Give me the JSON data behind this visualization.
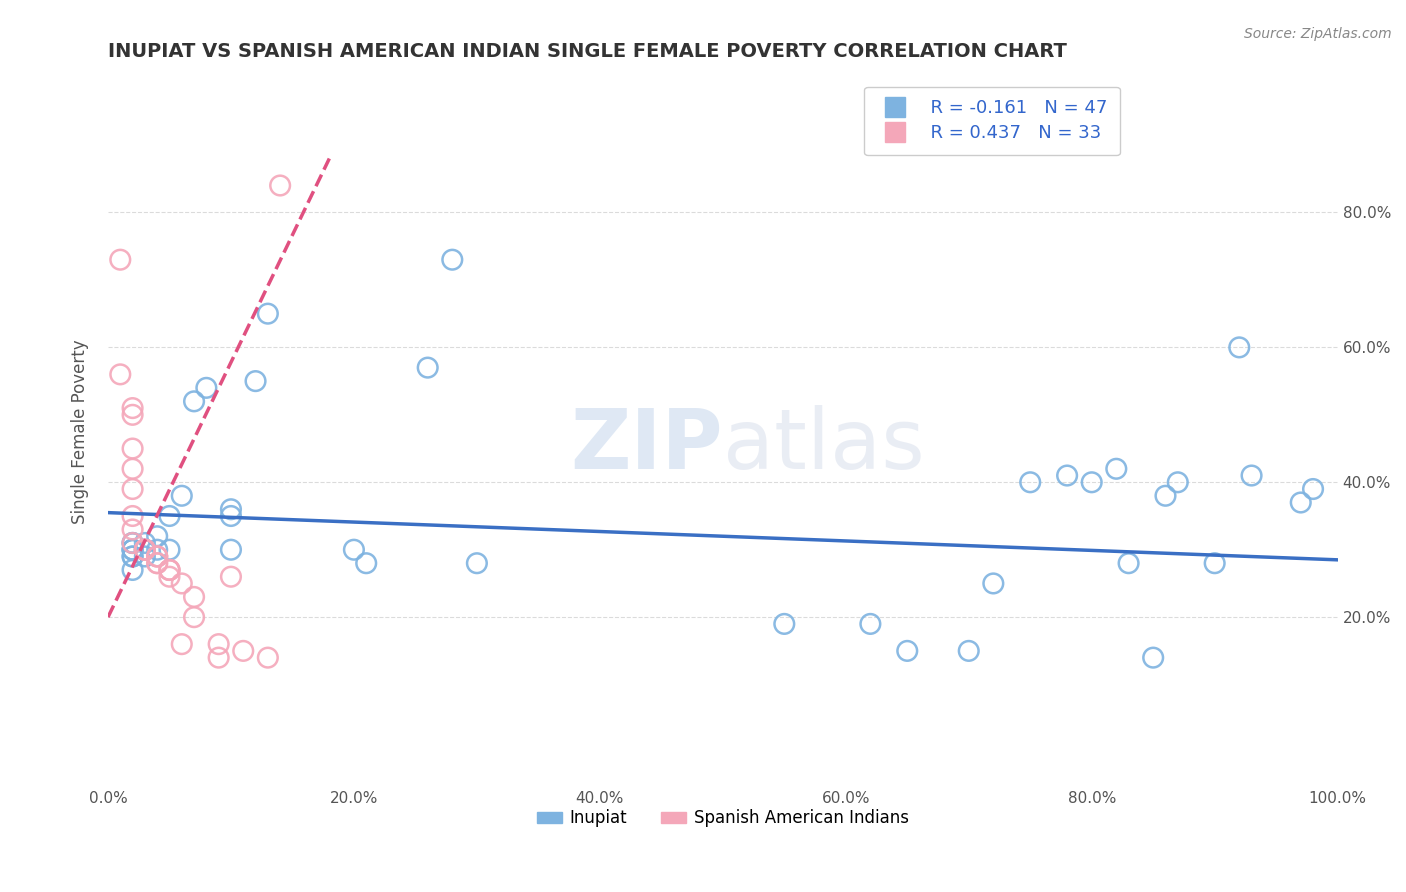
{
  "title": "INUPIAT VS SPANISH AMERICAN INDIAN SINGLE FEMALE POVERTY CORRELATION CHART",
  "source": "Source: ZipAtlas.com",
  "ylabel": "Single Female Poverty",
  "watermark_zip": "ZIP",
  "watermark_atlas": "atlas",
  "legend_inupiat_R": "R = -0.161",
  "legend_inupiat_N": "N = 47",
  "legend_spanish_R": "R = 0.437",
  "legend_spanish_N": "N = 33",
  "xlim": [
    0.0,
    1.0
  ],
  "ylim": [
    -0.05,
    1.0
  ],
  "xtick_labels": [
    "0.0%",
    "20.0%",
    "40.0%",
    "60.0%",
    "80.0%",
    "100.0%"
  ],
  "xtick_values": [
    0.0,
    0.2,
    0.4,
    0.6,
    0.8,
    1.0
  ],
  "ytick_values": [
    0.2,
    0.4,
    0.6,
    0.8
  ],
  "color_inupiat": "#7eb3e0",
  "color_spanish": "#f4a7b9",
  "color_inupiat_line": "#3a6fc4",
  "color_spanish_line": "#e05080",
  "inupiat_x": [
    0.02,
    0.02,
    0.02,
    0.02,
    0.02,
    0.02,
    0.02,
    0.02,
    0.03,
    0.03,
    0.03,
    0.03,
    0.04,
    0.04,
    0.05,
    0.05,
    0.06,
    0.07,
    0.08,
    0.1,
    0.1,
    0.1,
    0.12,
    0.13,
    0.2,
    0.21,
    0.26,
    0.28,
    0.3,
    0.55,
    0.62,
    0.65,
    0.7,
    0.72,
    0.75,
    0.78,
    0.8,
    0.82,
    0.83,
    0.85,
    0.86,
    0.87,
    0.9,
    0.92,
    0.93,
    0.97,
    0.98
  ],
  "inupiat_y": [
    0.27,
    0.29,
    0.29,
    0.3,
    0.3,
    0.3,
    0.31,
    0.31,
    0.29,
    0.3,
    0.3,
    0.31,
    0.3,
    0.32,
    0.3,
    0.35,
    0.38,
    0.52,
    0.54,
    0.3,
    0.35,
    0.36,
    0.55,
    0.65,
    0.3,
    0.28,
    0.57,
    0.73,
    0.28,
    0.19,
    0.19,
    0.15,
    0.15,
    0.25,
    0.4,
    0.41,
    0.4,
    0.42,
    0.28,
    0.14,
    0.38,
    0.4,
    0.28,
    0.6,
    0.41,
    0.37,
    0.39
  ],
  "spanish_x": [
    0.01,
    0.01,
    0.02,
    0.02,
    0.02,
    0.02,
    0.02,
    0.02,
    0.02,
    0.02,
    0.03,
    0.03,
    0.03,
    0.03,
    0.04,
    0.04,
    0.04,
    0.04,
    0.04,
    0.05,
    0.05,
    0.05,
    0.05,
    0.06,
    0.06,
    0.07,
    0.07,
    0.09,
    0.09,
    0.1,
    0.11,
    0.13,
    0.14
  ],
  "spanish_y": [
    0.73,
    0.56,
    0.5,
    0.51,
    0.45,
    0.42,
    0.39,
    0.35,
    0.33,
    0.31,
    0.3,
    0.3,
    0.3,
    0.3,
    0.29,
    0.29,
    0.29,
    0.28,
    0.28,
    0.27,
    0.27,
    0.27,
    0.26,
    0.25,
    0.16,
    0.23,
    0.2,
    0.16,
    0.14,
    0.26,
    0.15,
    0.14,
    0.84
  ],
  "inupiat_trend_x": [
    0.0,
    1.0
  ],
  "inupiat_trend_y": [
    0.355,
    0.285
  ],
  "spanish_trend_x": [
    0.0,
    0.18
  ],
  "spanish_trend_y": [
    0.2,
    0.88
  ],
  "grid_color": "#cccccc",
  "background_color": "#ffffff",
  "title_color": "#333333",
  "axis_label_color": "#555555",
  "tick_label_color": "#555555",
  "right_ytick_labels": [
    "20.0%",
    "40.0%",
    "60.0%",
    "80.0%"
  ],
  "right_ytick_values": [
    0.2,
    0.4,
    0.6,
    0.8
  ]
}
